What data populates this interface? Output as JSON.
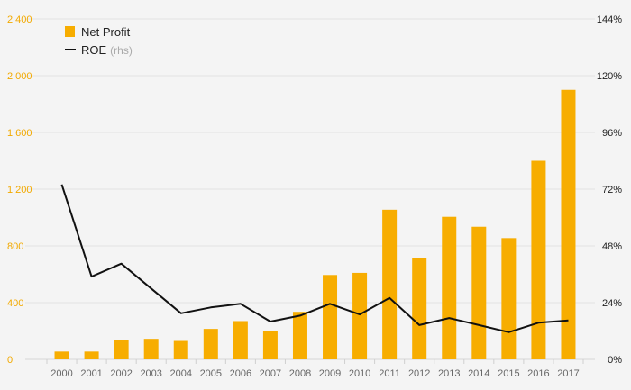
{
  "chart_data": {
    "type": "bar+line",
    "categories": [
      "2000",
      "2001",
      "2002",
      "2003",
      "2004",
      "2005",
      "2006",
      "2007",
      "2008",
      "2009",
      "2010",
      "2011",
      "2012",
      "2013",
      "2014",
      "2015",
      "2016",
      "2017"
    ],
    "series": [
      {
        "name": "Net Profit",
        "type": "bar",
        "axis": "left",
        "values": [
          55,
          55,
          135,
          145,
          130,
          215,
          270,
          200,
          335,
          595,
          610,
          1055,
          715,
          1005,
          935,
          855,
          1400,
          1900
        ]
      },
      {
        "name": "ROE",
        "name_suffix": "(rhs)",
        "type": "line",
        "axis": "right",
        "values": [
          74,
          35,
          40.5,
          30,
          19.5,
          22,
          23.5,
          16,
          18.5,
          23.5,
          19,
          26,
          14.5,
          17.5,
          14.5,
          11.5,
          15.5,
          16.5
        ]
      }
    ],
    "left_axis": {
      "ylim": [
        0,
        2400
      ],
      "ticks": [
        0,
        400,
        800,
        1200,
        1600,
        2000,
        2400
      ],
      "tick_labels": [
        "0",
        "400",
        "800",
        "1 200",
        "1 600",
        "2 000",
        "2 400"
      ]
    },
    "right_axis": {
      "ylim": [
        0,
        144
      ],
      "ticks": [
        0,
        24,
        48,
        72,
        96,
        120,
        144
      ],
      "tick_labels": [
        "0%",
        "24%",
        "48%",
        "72%",
        "96%",
        "120%",
        "144%"
      ]
    },
    "grid": true,
    "legend_position": "top-left",
    "title": "",
    "xlabel": "",
    "ylabel": ""
  },
  "colors": {
    "bar": "#f7ad00",
    "line": "#111111",
    "grid": "#e2e2e2",
    "left_ticks": "#f2a900",
    "right_ticks": "#222222",
    "x_ticks": "#666666",
    "background": "#f4f4f4"
  }
}
